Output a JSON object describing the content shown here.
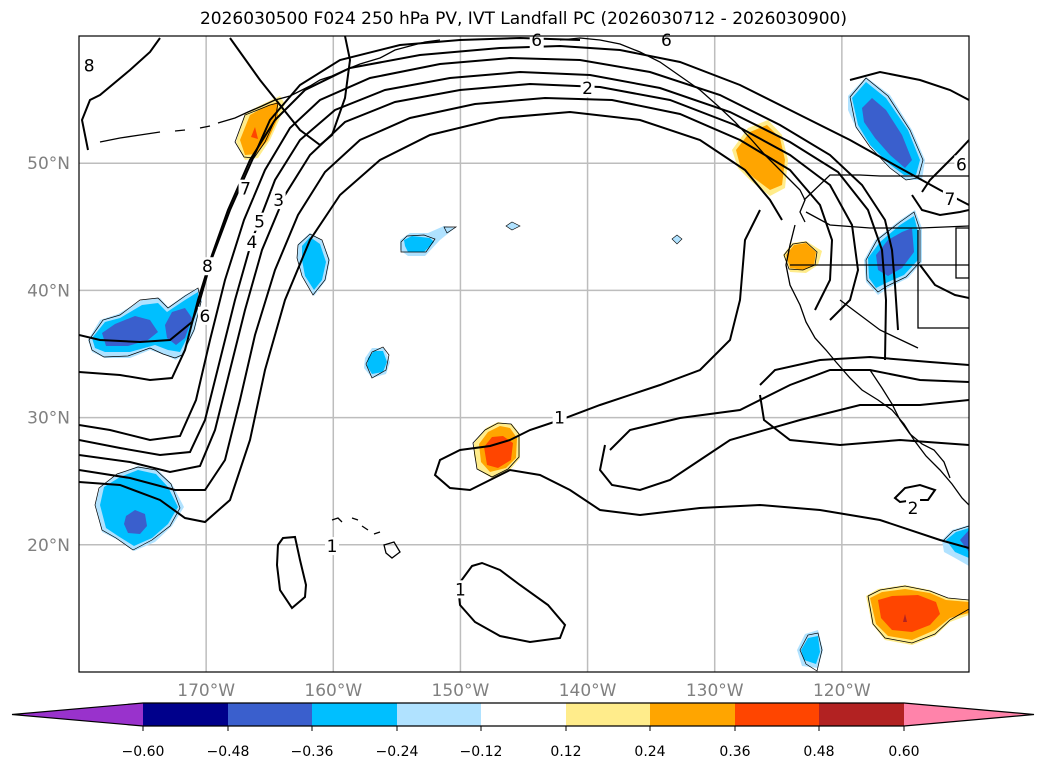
{
  "title": "2026030500 F024 250 hPa PV, IVT Landfall PC (2026030712 - 2026030900)",
  "map": {
    "projection": "cylindrical",
    "lon_range": [
      -180,
      -110
    ],
    "lat_range": [
      10,
      60
    ],
    "lat_ticks": [
      {
        "value": 50,
        "label": "50°N"
      },
      {
        "value": 40,
        "label": "40°N"
      },
      {
        "value": 30,
        "label": "30°N"
      },
      {
        "value": 20,
        "label": "20°N"
      }
    ],
    "lon_ticks": [
      {
        "value": -170,
        "label": "170°W"
      },
      {
        "value": -160,
        "label": "160°W"
      },
      {
        "value": -150,
        "label": "150°W"
      },
      {
        "value": -140,
        "label": "140°W"
      },
      {
        "value": -130,
        "label": "130°W"
      },
      {
        "value": -120,
        "label": "120°W"
      }
    ],
    "gridlines": true,
    "contour_field": "250 hPa PV (PVU)",
    "contour_labels": [
      {
        "text": "8",
        "lon": -179.2,
        "lat": 57.7
      },
      {
        "text": "6",
        "lon": -144.0,
        "lat": 59.7
      },
      {
        "text": "6",
        "lon": -133.8,
        "lat": 59.7
      },
      {
        "text": "2",
        "lon": -140.0,
        "lat": 55.9
      },
      {
        "text": "7",
        "lon": -166.9,
        "lat": 48.0
      },
      {
        "text": "5",
        "lon": -165.8,
        "lat": 45.4
      },
      {
        "text": "4",
        "lon": -166.4,
        "lat": 43.8
      },
      {
        "text": "3",
        "lon": -164.3,
        "lat": 47.1
      },
      {
        "text": "8",
        "lon": -169.9,
        "lat": 41.9
      },
      {
        "text": "6",
        "lon": -170.1,
        "lat": 38.0
      },
      {
        "text": "7",
        "lon": -111.5,
        "lat": 47.2
      },
      {
        "text": "6",
        "lon": -110.6,
        "lat": 49.9
      },
      {
        "text": "1",
        "lon": -142.2,
        "lat": 30.0
      },
      {
        "text": "1",
        "lon": -150.0,
        "lat": 16.5
      },
      {
        "text": "1",
        "lon": -160.1,
        "lat": 19.9
      },
      {
        "text": "2",
        "lon": -114.4,
        "lat": 22.9
      }
    ]
  },
  "colorbar": {
    "extend": "both",
    "ticks": [
      "−0.60",
      "−0.48",
      "−0.36",
      "−0.24",
      "−0.12",
      "0.12",
      "0.24",
      "0.36",
      "0.48",
      "0.60"
    ],
    "colors": [
      "#9932cc",
      "#00008b",
      "#3a5fcd",
      "#00bfff",
      "#b0e2ff",
      "#ffffff",
      "#ffec8b",
      "#ffa500",
      "#ff4500",
      "#b22222",
      "#ff83aa"
    ]
  },
  "shading_regions": [
    {
      "name": "aleutian-positive",
      "sign": "positive",
      "max_level": 0.36,
      "lon": -166,
      "lat": 52.5
    },
    {
      "name": "pnw-coast-positive",
      "sign": "positive",
      "max_level": 0.24,
      "lon": -125,
      "lat": 50.5
    },
    {
      "name": "california-positive",
      "sign": "positive",
      "max_level": 0.24,
      "lon": -123.5,
      "lat": 42.5
    },
    {
      "name": "subtropical-positive",
      "sign": "positive",
      "max_level": 0.36,
      "lon": -147,
      "lat": 27.5
    },
    {
      "name": "southeast-positive",
      "sign": "positive",
      "max_level": 0.36,
      "lon": -115,
      "lat": 14.5
    },
    {
      "name": "west-negative-north",
      "sign": "negative",
      "max_level": -0.36,
      "lon": -175,
      "lat": 37
    },
    {
      "name": "west-negative-south",
      "sign": "negative",
      "max_level": -0.36,
      "lon": -175,
      "lat": 22.5
    },
    {
      "name": "interior-bc-negative",
      "sign": "negative",
      "max_level": -0.36,
      "lon": -116,
      "lat": 52
    },
    {
      "name": "idaho-negative",
      "sign": "negative",
      "max_level": -0.36,
      "lon": -116.5,
      "lat": 42
    },
    {
      "name": "central-negative-1",
      "sign": "negative",
      "max_level": -0.24,
      "lon": -161,
      "lat": 42.5
    },
    {
      "name": "central-negative-2",
      "sign": "negative",
      "max_level": -0.24,
      "lon": -153.5,
      "lat": 43.7
    },
    {
      "name": "central-negative-3",
      "sign": "negative",
      "max_level": -0.24,
      "lon": -156.5,
      "lat": 34.5
    },
    {
      "name": "mexico-negative",
      "sign": "negative",
      "max_level": -0.36,
      "lon": -111,
      "lat": 20.5
    },
    {
      "name": "south-negative",
      "sign": "negative",
      "max_level": -0.24,
      "lon": -122.8,
      "lat": 12
    }
  ]
}
